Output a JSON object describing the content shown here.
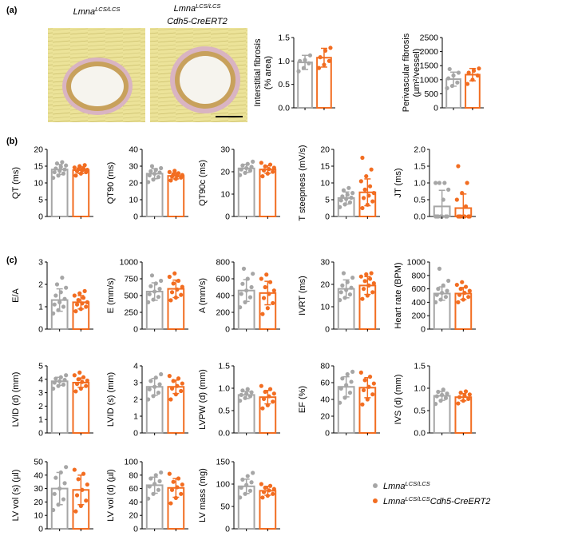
{
  "figure": {
    "panel_labels": [
      "(a)",
      "(b)",
      "(c)"
    ],
    "micrograph_titles": [
      {
        "base": "Lmna",
        "sup": "LCS/LCS",
        "line2": ""
      },
      {
        "base": "Lmna",
        "sup": "LCS/LCS",
        "line2": "Cdh5-CreERT2"
      }
    ],
    "legend": [
      {
        "base": "Lmna",
        "sup": "LCS/LCS",
        "suffix": "",
        "color": "#a6a6a6"
      },
      {
        "base": "Lmna",
        "sup": "LCS/LCS",
        "suffix": "Cdh5-CreERT2",
        "color": "#f26d21"
      }
    ],
    "colors": {
      "control": "#a6a6a6",
      "knockout": "#f26d21",
      "text": "#000000"
    }
  },
  "chart_data": [
    {
      "type": "bar",
      "panel": "a",
      "ylabel": [
        "Interstitial fibrosis",
        "(% area)"
      ],
      "ylim": [
        0,
        1.5
      ],
      "yticks": [
        "0.0",
        "0.5",
        "1.0",
        "1.5"
      ],
      "series": [
        {
          "mean": 0.97,
          "sd": 0.15,
          "points": [
            0.78,
            0.85,
            0.95,
            1.0,
            1.02,
            1.12
          ]
        },
        {
          "mean": 1.07,
          "sd": 0.2,
          "points": [
            0.85,
            0.92,
            1.0,
            1.08,
            1.22,
            1.28
          ]
        }
      ]
    },
    {
      "type": "bar",
      "panel": "a",
      "ylabel": [
        "Perivascular fibrosis",
        "(µm²/vessel)"
      ],
      "ylim": [
        0,
        2500
      ],
      "yticks": [
        "0",
        "500",
        "1000",
        "1500",
        "2000",
        "2500"
      ],
      "series": [
        {
          "mean": 1020,
          "sd": 250,
          "points": [
            700,
            780,
            900,
            1050,
            1150,
            1250,
            1380
          ]
        },
        {
          "mean": 1180,
          "sd": 220,
          "points": [
            850,
            1000,
            1150,
            1250,
            1320,
            1400
          ]
        }
      ]
    },
    {
      "type": "bar",
      "panel": "b",
      "ylabel": [
        "QT (ms)"
      ],
      "ylim": [
        0,
        20
      ],
      "yticks": [
        "0",
        "5",
        "10",
        "15",
        "20"
      ],
      "series": [
        {
          "mean": 14,
          "sd": 1.5,
          "points": [
            11.5,
            12.2,
            12.8,
            13.2,
            13.6,
            14.0,
            14.3,
            14.8,
            15.2,
            15.8,
            16.2
          ]
        },
        {
          "mean": 13.8,
          "sd": 1.0,
          "points": [
            12.2,
            12.8,
            13.2,
            13.5,
            13.7,
            13.9,
            14.1,
            14.3,
            14.6,
            15.0,
            15.3
          ]
        }
      ]
    },
    {
      "type": "bar",
      "panel": "b",
      "ylabel": [
        "QT90 (ms)"
      ],
      "ylim": [
        0,
        40
      ],
      "yticks": [
        "0",
        "10",
        "20",
        "30",
        "40"
      ],
      "series": [
        {
          "mean": 25.5,
          "sd": 3,
          "points": [
            20.5,
            22.0,
            23.5,
            24.5,
            25.5,
            26.2,
            27.0,
            27.8,
            28.8,
            30.0
          ]
        },
        {
          "mean": 24.2,
          "sd": 1.8,
          "points": [
            21.5,
            22.4,
            23.2,
            23.8,
            24.2,
            24.7,
            25.2,
            25.8,
            26.5,
            27.2
          ]
        }
      ]
    },
    {
      "type": "bar",
      "panel": "b",
      "ylabel": [
        "QT90c (ms)"
      ],
      "ylim": [
        0,
        30
      ],
      "yticks": [
        "0",
        "10",
        "20",
        "30"
      ],
      "series": [
        {
          "mean": 21.5,
          "sd": 1.8,
          "points": [
            18.5,
            19.5,
            20.5,
            21.0,
            21.6,
            22.2,
            22.8,
            23.5,
            24.5
          ]
        },
        {
          "mean": 21,
          "sd": 1.7,
          "points": [
            18.0,
            19.2,
            20.0,
            20.6,
            21.2,
            21.8,
            22.4,
            23.2,
            24.0
          ]
        }
      ]
    },
    {
      "type": "bar",
      "panel": "b",
      "ylabel": [
        "T steepness (mV/s)"
      ],
      "ylim": [
        0,
        20
      ],
      "yticks": [
        "0",
        "5",
        "10",
        "15",
        "20"
      ],
      "series": [
        {
          "mean": 5.5,
          "sd": 1.8,
          "points": [
            2.8,
            3.6,
            4.2,
            4.8,
            5.2,
            5.6,
            6.0,
            6.5,
            7.0,
            7.8,
            8.5
          ]
        },
        {
          "mean": 7.2,
          "sd": 4.0,
          "points": [
            2.5,
            3.5,
            4.5,
            5.5,
            6.2,
            7.0,
            8.0,
            9.0,
            10.5,
            12.0,
            14.0,
            17.5
          ]
        }
      ]
    },
    {
      "type": "bar",
      "panel": "b",
      "ylabel": [
        "JT (ms)"
      ],
      "ylim": [
        0,
        2.0
      ],
      "yticks": [
        "0.0",
        "0.5",
        "1.0",
        "1.5",
        "2.0"
      ],
      "series": [
        {
          "mean": 0.3,
          "sd": 0.48,
          "points": [
            0,
            0,
            0,
            0,
            0,
            0,
            0,
            0.5,
            0.8,
            1.0,
            1.0,
            1.0
          ]
        },
        {
          "mean": 0.25,
          "sd": 0.42,
          "points": [
            0,
            0,
            0,
            0,
            0,
            0,
            0,
            0.3,
            0.5,
            0.7,
            1.0,
            1.5
          ]
        }
      ]
    },
    {
      "type": "bar",
      "panel": "c",
      "ylabel": [
        "E/A"
      ],
      "ylim": [
        0,
        3
      ],
      "yticks": [
        "0",
        "1",
        "2",
        "3"
      ],
      "series": [
        {
          "mean": 1.3,
          "sd": 0.5,
          "points": [
            0.7,
            0.85,
            1.0,
            1.1,
            1.2,
            1.35,
            1.5,
            1.65,
            1.85,
            2.0,
            2.3
          ]
        },
        {
          "mean": 1.2,
          "sd": 0.3,
          "points": [
            0.8,
            0.9,
            1.0,
            1.1,
            1.15,
            1.2,
            1.3,
            1.4,
            1.5,
            1.6,
            1.7
          ]
        }
      ]
    },
    {
      "type": "bar",
      "panel": "c",
      "ylabel": [
        "E (mm/s)"
      ],
      "ylim": [
        0,
        1000
      ],
      "yticks": [
        "0",
        "250",
        "500",
        "750",
        "1000"
      ],
      "series": [
        {
          "mean": 560,
          "sd": 130,
          "points": [
            400,
            440,
            480,
            520,
            560,
            600,
            640,
            680,
            720,
            800
          ]
        },
        {
          "mean": 600,
          "sd": 130,
          "points": [
            430,
            470,
            510,
            550,
            590,
            630,
            680,
            720,
            780,
            830
          ]
        }
      ]
    },
    {
      "type": "bar",
      "panel": "c",
      "ylabel": [
        "A (mm/s)"
      ],
      "ylim": [
        0,
        800
      ],
      "yticks": [
        "0",
        "200",
        "400",
        "600",
        "800"
      ],
      "series": [
        {
          "mean": 460,
          "sd": 130,
          "points": [
            260,
            320,
            380,
            420,
            460,
            500,
            540,
            600,
            660,
            720
          ]
        },
        {
          "mean": 430,
          "sd": 140,
          "points": [
            180,
            250,
            310,
            370,
            420,
            460,
            500,
            560,
            600,
            650
          ]
        }
      ]
    },
    {
      "type": "bar",
      "panel": "c",
      "ylabel": [
        "IVRT (ms)"
      ],
      "ylim": [
        0,
        30
      ],
      "yticks": [
        "0",
        "10",
        "20",
        "30"
      ],
      "series": [
        {
          "mean": 18,
          "sd": 4,
          "points": [
            13,
            14,
            15.5,
            16.5,
            17.5,
            18.5,
            19.5,
            21,
            23,
            25
          ]
        },
        {
          "mean": 19.5,
          "sd": 4,
          "points": [
            13.5,
            15,
            16.5,
            18,
            19.5,
            20.5,
            21.5,
            22.5,
            23.5,
            24.5,
            25
          ]
        }
      ]
    },
    {
      "type": "bar",
      "panel": "c",
      "ylabel": [
        "Heart rate (BPM)"
      ],
      "ylim": [
        0,
        1000
      ],
      "yticks": [
        "0",
        "200",
        "400",
        "600",
        "800",
        "1000"
      ],
      "series": [
        {
          "mean": 530,
          "sd": 100,
          "points": [
            400,
            440,
            480,
            510,
            540,
            570,
            600,
            650,
            720,
            900
          ]
        },
        {
          "mean": 530,
          "sd": 90,
          "points": [
            400,
            440,
            480,
            510,
            540,
            570,
            600,
            630,
            660,
            700
          ]
        }
      ]
    },
    {
      "type": "bar",
      "panel": "c",
      "ylabel": [
        "LVID (d) (mm)"
      ],
      "ylim": [
        0,
        5
      ],
      "yticks": [
        "0",
        "1",
        "2",
        "3",
        "4",
        "5"
      ],
      "series": [
        {
          "mean": 3.85,
          "sd": 0.3,
          "points": [
            3.3,
            3.5,
            3.6,
            3.75,
            3.85,
            3.95,
            4.05,
            4.15,
            4.3
          ]
        },
        {
          "mean": 3.75,
          "sd": 0.35,
          "points": [
            3.1,
            3.3,
            3.5,
            3.65,
            3.8,
            3.9,
            4.0,
            4.15,
            4.3,
            4.5
          ]
        }
      ]
    },
    {
      "type": "bar",
      "panel": "c",
      "ylabel": [
        "LVID (s) (mm)"
      ],
      "ylim": [
        0,
        4
      ],
      "yticks": [
        "0",
        "1",
        "2",
        "3",
        "4"
      ],
      "series": [
        {
          "mean": 2.75,
          "sd": 0.5,
          "points": [
            2.0,
            2.2,
            2.4,
            2.6,
            2.75,
            2.9,
            3.1,
            3.3,
            3.5
          ]
        },
        {
          "mean": 2.75,
          "sd": 0.4,
          "points": [
            2.0,
            2.3,
            2.5,
            2.65,
            2.8,
            2.95,
            3.1,
            3.25,
            3.4
          ]
        }
      ]
    },
    {
      "type": "bar",
      "panel": "c",
      "ylabel": [
        "LVPW (d) (mm)"
      ],
      "ylim": [
        0,
        1.5
      ],
      "yticks": [
        "0.0",
        "0.5",
        "1.0",
        "1.5"
      ],
      "series": [
        {
          "mean": 0.85,
          "sd": 0.08,
          "points": [
            0.72,
            0.78,
            0.82,
            0.85,
            0.88,
            0.91,
            0.95,
            0.98
          ]
        },
        {
          "mean": 0.8,
          "sd": 0.15,
          "points": [
            0.55,
            0.62,
            0.7,
            0.76,
            0.82,
            0.88,
            0.92,
            0.98,
            1.05
          ]
        }
      ]
    },
    {
      "type": "bar",
      "panel": "c",
      "ylabel": [
        "EF (%)"
      ],
      "ylim": [
        0,
        80
      ],
      "yticks": [
        "0",
        "20",
        "40",
        "60",
        "80"
      ],
      "series": [
        {
          "mean": 55,
          "sd": 12,
          "points": [
            36,
            42,
            48,
            53,
            57,
            61,
            65,
            70,
            73
          ]
        },
        {
          "mean": 54,
          "sd": 12,
          "points": [
            34,
            40,
            46,
            51,
            55,
            59,
            63,
            67,
            72
          ]
        }
      ]
    },
    {
      "type": "bar",
      "panel": "c",
      "ylabel": [
        "IVS (d) (mm)"
      ],
      "ylim": [
        0,
        1.5
      ],
      "yticks": [
        "0.0",
        "0.5",
        "1.0",
        "1.5"
      ],
      "series": [
        {
          "mean": 0.83,
          "sd": 0.1,
          "points": [
            0.65,
            0.72,
            0.78,
            0.82,
            0.85,
            0.88,
            0.92,
            0.97
          ]
        },
        {
          "mean": 0.8,
          "sd": 0.08,
          "points": [
            0.66,
            0.72,
            0.76,
            0.8,
            0.83,
            0.86,
            0.9,
            0.93
          ]
        }
      ]
    },
    {
      "type": "bar",
      "panel": "c",
      "ylabel": [
        "LV vol (s) (µl)"
      ],
      "ylim": [
        0,
        50
      ],
      "yticks": [
        "0",
        "10",
        "20",
        "30",
        "40",
        "50"
      ],
      "series": [
        {
          "mean": 30,
          "sd": 12,
          "points": [
            14,
            18,
            22,
            26,
            30,
            34,
            38,
            42,
            46
          ]
        },
        {
          "mean": 29,
          "sd": 11,
          "points": [
            13,
            17,
            21,
            25,
            29,
            33,
            37,
            41,
            44
          ]
        }
      ]
    },
    {
      "type": "bar",
      "panel": "c",
      "ylabel": [
        "LV vol (d) (µl)"
      ],
      "ylim": [
        0,
        100
      ],
      "yticks": [
        "0",
        "20",
        "40",
        "60",
        "80",
        "100"
      ],
      "series": [
        {
          "mean": 65,
          "sd": 12,
          "points": [
            45,
            52,
            58,
            63,
            67,
            71,
            75,
            80,
            84
          ]
        },
        {
          "mean": 61,
          "sd": 14,
          "points": [
            38,
            46,
            52,
            58,
            62,
            66,
            70,
            75,
            82
          ]
        }
      ]
    },
    {
      "type": "bar",
      "panel": "c",
      "ylabel": [
        "LV mass (mg)"
      ],
      "ylim": [
        0,
        150
      ],
      "yticks": [
        "0",
        "50",
        "100",
        "150"
      ],
      "series": [
        {
          "mean": 95,
          "sd": 16,
          "points": [
            70,
            78,
            85,
            92,
            98,
            104,
            110,
            118,
            125
          ]
        },
        {
          "mean": 85,
          "sd": 10,
          "points": [
            70,
            74,
            78,
            82,
            86,
            89,
            92,
            96,
            100
          ]
        }
      ]
    }
  ]
}
